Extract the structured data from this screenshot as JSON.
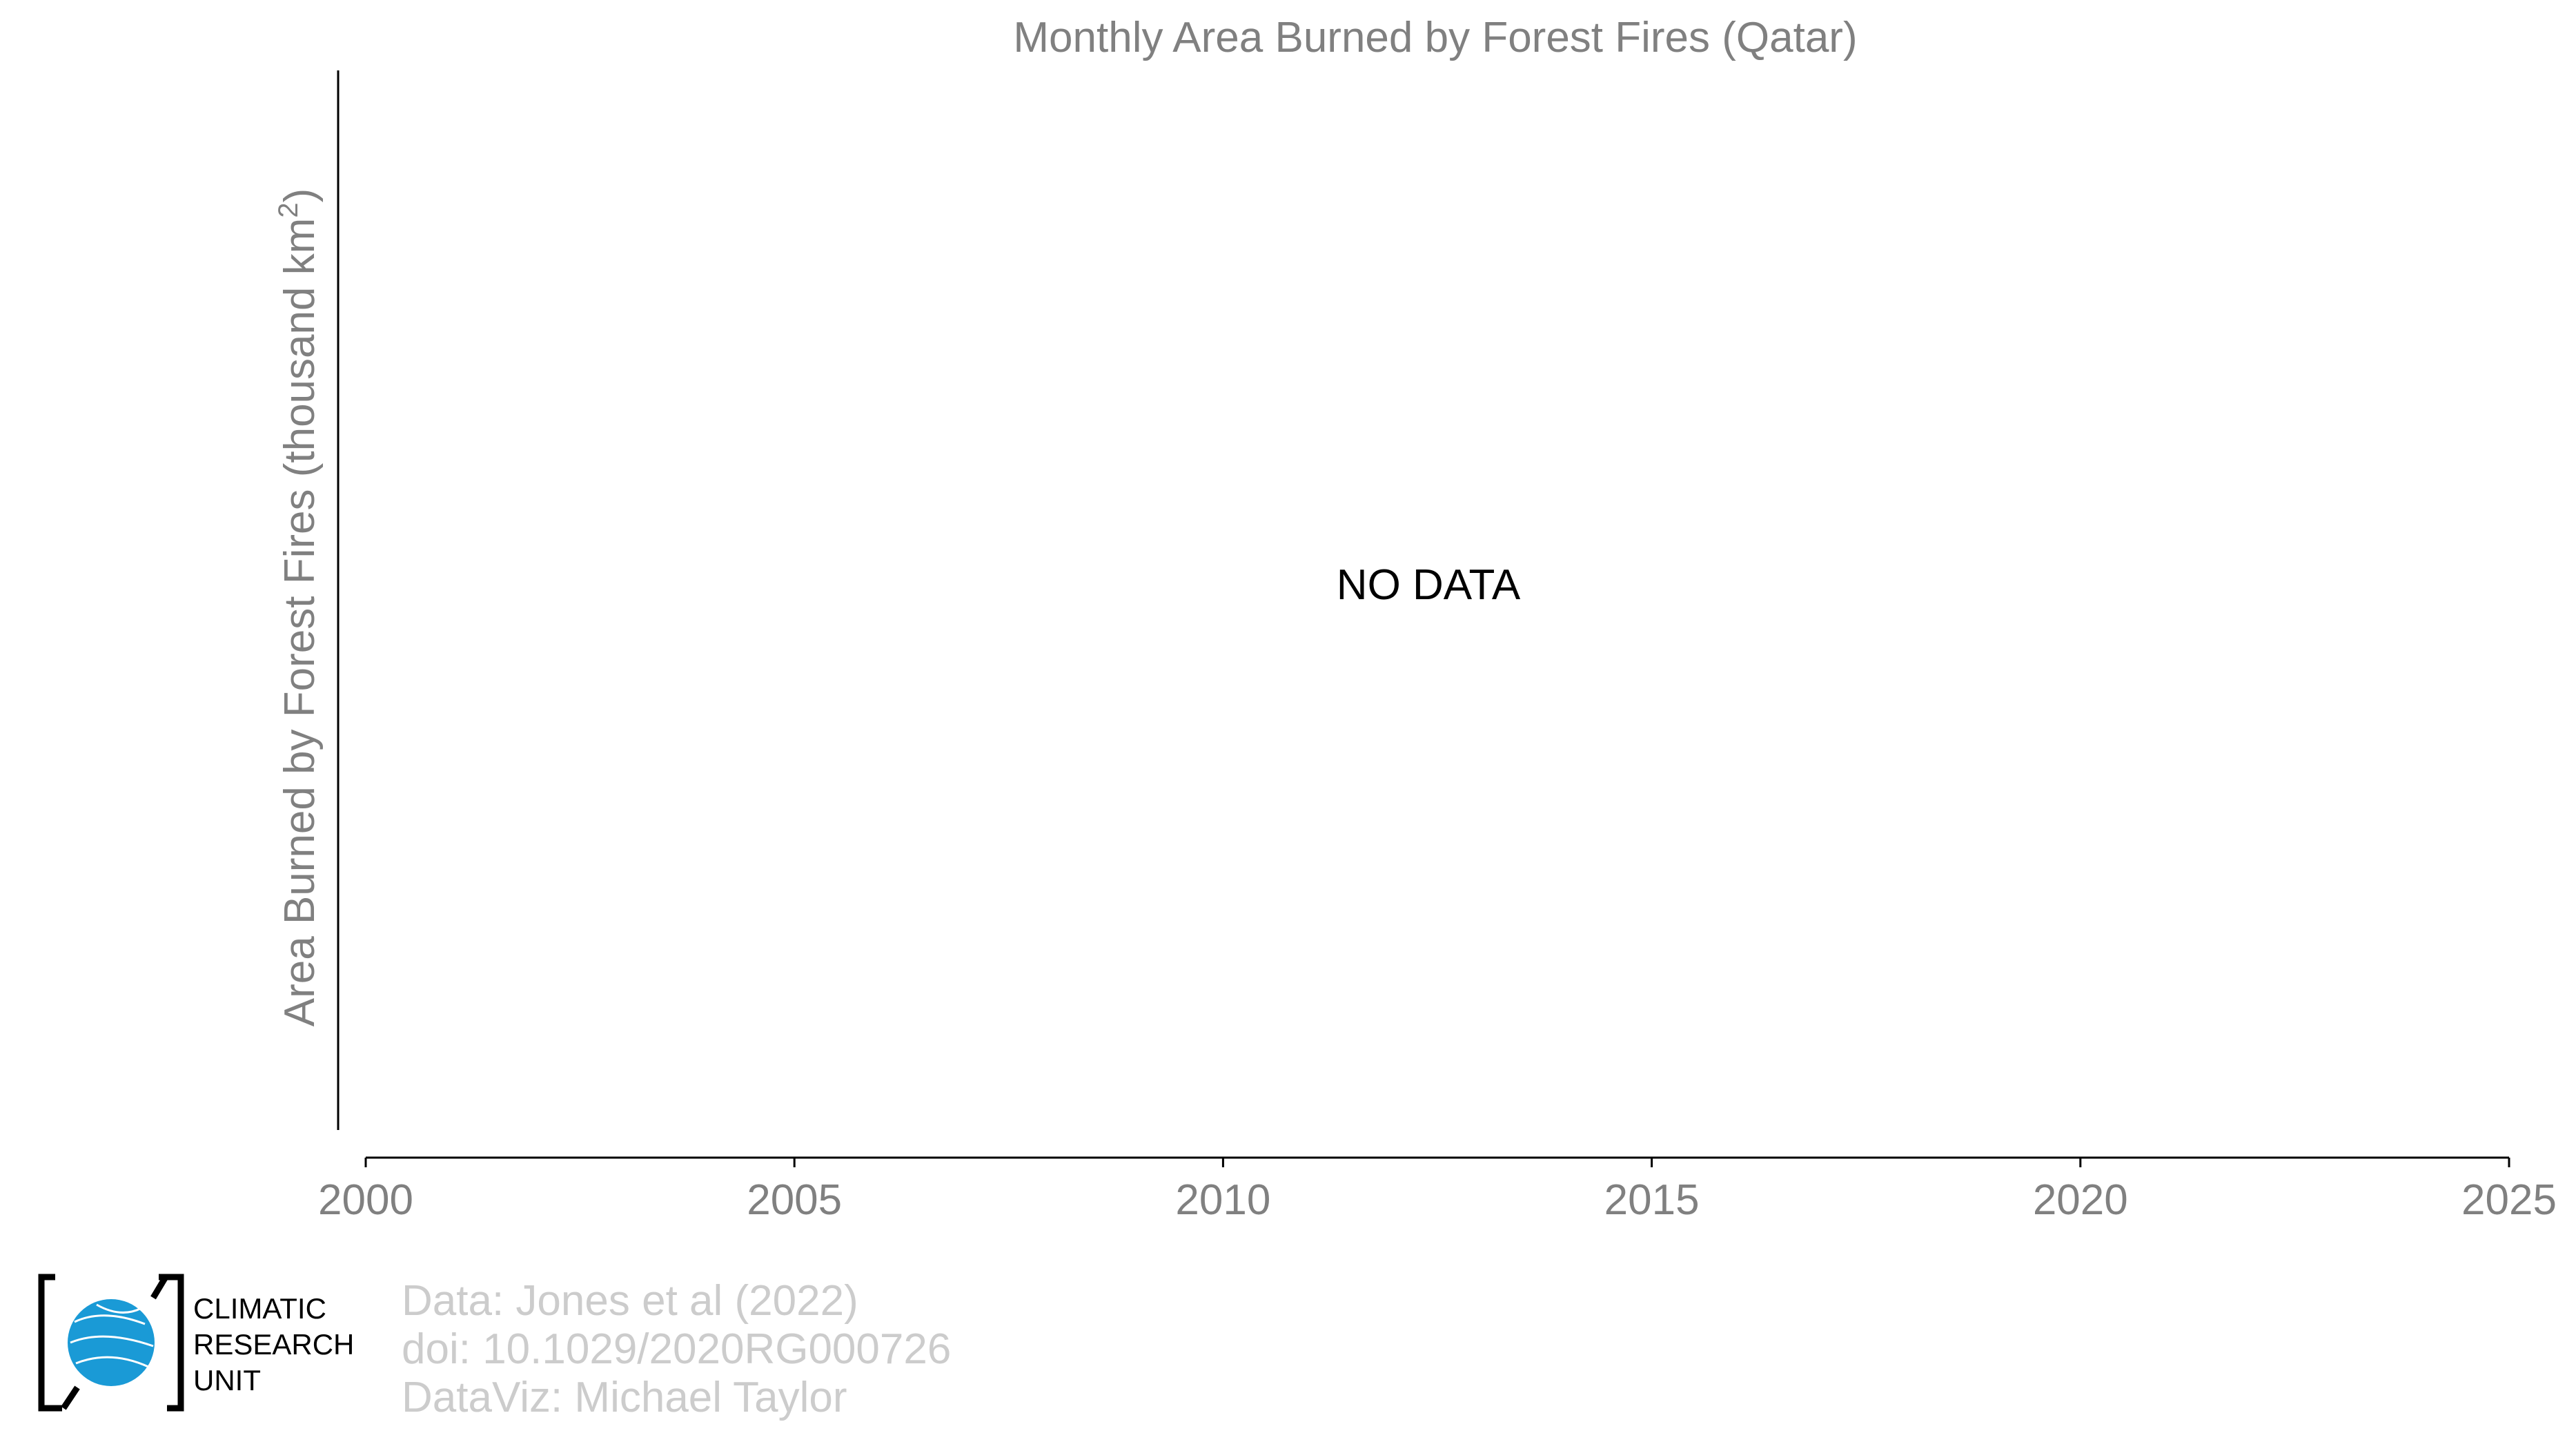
{
  "chart_data": {
    "type": "line",
    "title": "Monthly Area Burned by Forest Fires (Qatar)",
    "ylabel_main": "Area Burned by Forest Fires (thousand km",
    "ylabel_sup": "2",
    "ylabel_close": ")",
    "xlabel": "",
    "xlim": [
      2000,
      2025
    ],
    "xticks": [
      2000,
      2005,
      2010,
      2015,
      2020,
      2025
    ],
    "series": [],
    "annotation": "NO DATA",
    "grid": false
  },
  "credits": {
    "line1": "Data: Jones et al (2022)",
    "line2": "doi: 10.1029/2020RG000726",
    "line3": "DataViz: Michael Taylor"
  },
  "logo": {
    "line1": "CLIMATIC",
    "line2": "RESEARCH",
    "line3": "UNIT",
    "globe_color": "#1a9ad6"
  },
  "colors": {
    "title": "#808080",
    "axis": "#000000",
    "tick_label": "#808080",
    "credits": "#cccccc"
  }
}
